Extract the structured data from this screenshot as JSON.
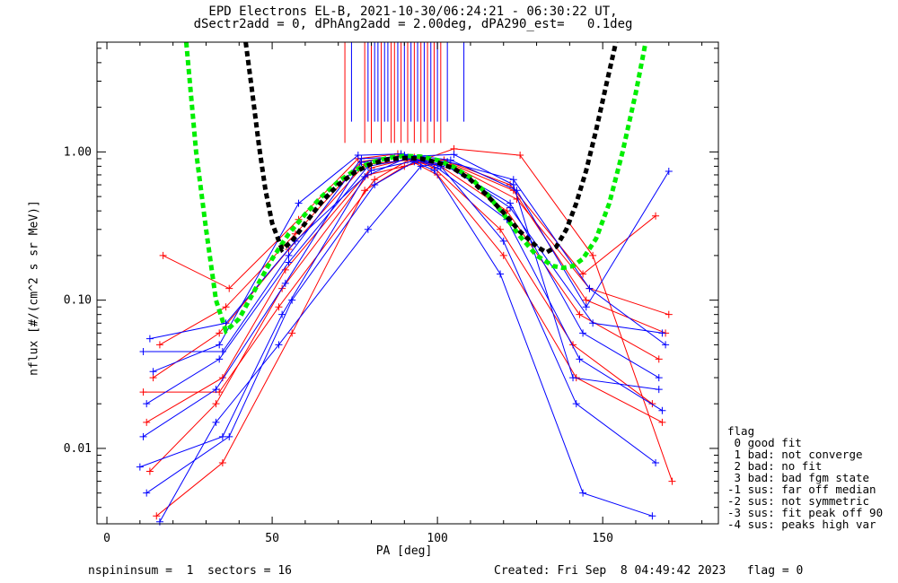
{
  "title_line1": "EPD Electrons EL-B, 2021-10-30/06:24:21 - 06:30:22 UT,",
  "title_line2": "dSectr2add = 0, dPhAng2add = 2.00deg, dPA290_est=   0.1deg",
  "footer": {
    "left": "nspininsum =  1  sectors = 16",
    "right": "Created: Fri Sep  8 04:49:42 2023   flag = 0"
  },
  "flag_legend": {
    "title": "flag",
    "items": [
      " 0 good fit",
      " 1 bad: not converge",
      " 2 bad: no fit",
      " 3 bad: bad fgm state",
      "-1 sus: far off median",
      "-2 sus: not symmetric",
      "-3 sus: fit peak off 90",
      "-4 sus: peaks high var"
    ]
  },
  "colors": {
    "red": "#ff0000",
    "blue": "#0000ff",
    "green": "#00ee00",
    "black": "#000000"
  },
  "chart_data": {
    "type": "line",
    "title": "EPD Electrons EL-B, 2021-10-30/06:24:21 - 06:30:22 UT, dSectr2add = 0, dPhAng2add = 2.00deg, dPA290_est=   0.1deg",
    "xlabel": "PA [deg]",
    "ylabel": "nflux [#/(cm^2 s sr MeV)]",
    "xlim": [
      -3,
      185
    ],
    "ylim": [
      0.0031,
      5.5
    ],
    "yscale": "log",
    "xticks": [
      0,
      50,
      100,
      150
    ],
    "xtick_labels": [
      "0",
      "50",
      "100",
      "150"
    ],
    "yticks": [
      0.01,
      0.1,
      1.0
    ],
    "ytick_labels": [
      "0.01",
      "0.10",
      "1.00"
    ],
    "grid": false,
    "marker": "+",
    "series": [
      {
        "color": "red",
        "pa": [
          14,
          34,
          55,
          78,
          91,
          101,
          121,
          143,
          167
        ],
        "flux": [
          0.03,
          0.06,
          0.22,
          0.82,
          0.88,
          0.8,
          0.4,
          0.08,
          0.04
        ]
      },
      {
        "color": "red",
        "pa": [
          12,
          35,
          54,
          80,
          93,
          103,
          123,
          145,
          169
        ],
        "flux": [
          0.015,
          0.03,
          0.16,
          0.78,
          0.92,
          0.85,
          0.55,
          0.1,
          0.06
        ]
      },
      {
        "color": "red",
        "pa": [
          16,
          36,
          57,
          77,
          89,
          99,
          119,
          141,
          165
        ],
        "flux": [
          0.05,
          0.09,
          0.28,
          0.86,
          0.95,
          0.78,
          0.3,
          0.05,
          0.02
        ]
      },
      {
        "color": "red",
        "pa": [
          13,
          33,
          53,
          79,
          95,
          104,
          124,
          146,
          170
        ],
        "flux": [
          0.007,
          0.02,
          0.12,
          0.7,
          0.85,
          0.82,
          0.48,
          0.12,
          0.08
        ]
      },
      {
        "color": "red",
        "pa": [
          17,
          37,
          58,
          76,
          88,
          100,
          120,
          142,
          168
        ],
        "flux": [
          0.2,
          0.12,
          0.35,
          0.9,
          0.97,
          0.7,
          0.2,
          0.03,
          0.015
        ]
      },
      {
        "color": "red",
        "pa": [
          11,
          34,
          52,
          81,
          92,
          102,
          122,
          144,
          166
        ],
        "flux": [
          0.024,
          0.024,
          0.09,
          0.65,
          0.9,
          0.88,
          0.6,
          0.15,
          0.37
        ]
      },
      {
        "color": "red",
        "pa": [
          15,
          35,
          56,
          78,
          90,
          105,
          125,
          147,
          171
        ],
        "flux": [
          0.0035,
          0.008,
          0.06,
          0.55,
          0.8,
          1.05,
          0.95,
          0.2,
          0.006
        ]
      },
      {
        "color": "blue",
        "pa": [
          12,
          34,
          55,
          79,
          92,
          102,
          122,
          144,
          167
        ],
        "flux": [
          0.02,
          0.04,
          0.18,
          0.8,
          0.9,
          0.82,
          0.45,
          0.06,
          0.03
        ]
      },
      {
        "color": "blue",
        "pa": [
          11,
          33,
          54,
          77,
          90,
          100,
          121,
          143,
          168
        ],
        "flux": [
          0.012,
          0.025,
          0.13,
          0.85,
          0.95,
          0.78,
          0.35,
          0.04,
          0.018
        ]
      },
      {
        "color": "blue",
        "pa": [
          13,
          36,
          57,
          80,
          94,
          103,
          123,
          146,
          169
        ],
        "flux": [
          0.055,
          0.07,
          0.25,
          0.75,
          0.88,
          0.86,
          0.65,
          0.12,
          0.05
        ]
      },
      {
        "color": "blue",
        "pa": [
          10,
          35,
          53,
          78,
          91,
          101,
          120,
          142,
          166
        ],
        "flux": [
          0.0075,
          0.012,
          0.08,
          0.68,
          0.92,
          0.8,
          0.25,
          0.02,
          0.008
        ]
      },
      {
        "color": "blue",
        "pa": [
          14,
          34,
          58,
          76,
          89,
          104,
          124,
          145,
          170
        ],
        "flux": [
          0.033,
          0.05,
          0.45,
          0.95,
          0.97,
          0.88,
          0.55,
          0.09,
          0.74
        ]
      },
      {
        "color": "blue",
        "pa": [
          12,
          37,
          56,
          81,
          93,
          99,
          119,
          144,
          165
        ],
        "flux": [
          0.005,
          0.012,
          0.1,
          0.6,
          0.86,
          0.75,
          0.15,
          0.005,
          0.0035
        ]
      },
      {
        "color": "blue",
        "pa": [
          16,
          33,
          52,
          79,
          95,
          102,
          122,
          147,
          168
        ],
        "flux": [
          0.0032,
          0.015,
          0.05,
          0.3,
          0.8,
          0.84,
          0.42,
          0.07,
          0.06
        ]
      },
      {
        "color": "blue",
        "pa": [
          11,
          35,
          55,
          77,
          90,
          105,
          123,
          141,
          167
        ],
        "flux": [
          0.045,
          0.045,
          0.2,
          0.9,
          0.93,
          0.96,
          0.6,
          0.03,
          0.025
        ]
      }
    ],
    "fit_curves": [
      {
        "color": "green",
        "style": "dashed",
        "pa": [
          24,
          27,
          30,
          33,
          36,
          40,
          45,
          50,
          55,
          60,
          65,
          70,
          75,
          80,
          85,
          90,
          95,
          100,
          105,
          110,
          115,
          120,
          125,
          130,
          135,
          138,
          141,
          144,
          148,
          152,
          156,
          160,
          163
        ],
        "flux": [
          5.5,
          1.0,
          0.3,
          0.1,
          0.062,
          0.075,
          0.12,
          0.19,
          0.28,
          0.38,
          0.5,
          0.63,
          0.75,
          0.85,
          0.91,
          0.94,
          0.93,
          0.88,
          0.79,
          0.67,
          0.52,
          0.38,
          0.27,
          0.2,
          0.17,
          0.165,
          0.17,
          0.19,
          0.26,
          0.45,
          1.0,
          2.5,
          5.5
        ]
      },
      {
        "color": "black",
        "style": "dashed",
        "pa": [
          42,
          44,
          46,
          48,
          50,
          53,
          56,
          60,
          65,
          70,
          75,
          80,
          85,
          90,
          95,
          100,
          105,
          110,
          115,
          120,
          125,
          130,
          133,
          136,
          139,
          142,
          145,
          148,
          151,
          154
        ],
        "flux": [
          5.5,
          2.5,
          1.1,
          0.55,
          0.33,
          0.22,
          0.25,
          0.33,
          0.46,
          0.6,
          0.73,
          0.83,
          0.89,
          0.91,
          0.9,
          0.85,
          0.77,
          0.65,
          0.51,
          0.39,
          0.29,
          0.23,
          0.21,
          0.23,
          0.3,
          0.45,
          0.75,
          1.4,
          2.8,
          5.5
        ]
      }
    ],
    "vertical_lines": [
      {
        "color": "red",
        "pa": [
          72,
          78,
          80,
          83,
          86,
          87,
          89,
          91,
          93,
          95,
          97,
          99,
          101
        ],
        "ymin": 1.15
      },
      {
        "color": "blue",
        "pa": [
          74,
          79,
          81,
          82,
          84,
          85,
          88,
          90,
          92,
          94,
          96,
          98,
          100,
          103,
          108
        ],
        "ymin": 1.6
      }
    ]
  }
}
